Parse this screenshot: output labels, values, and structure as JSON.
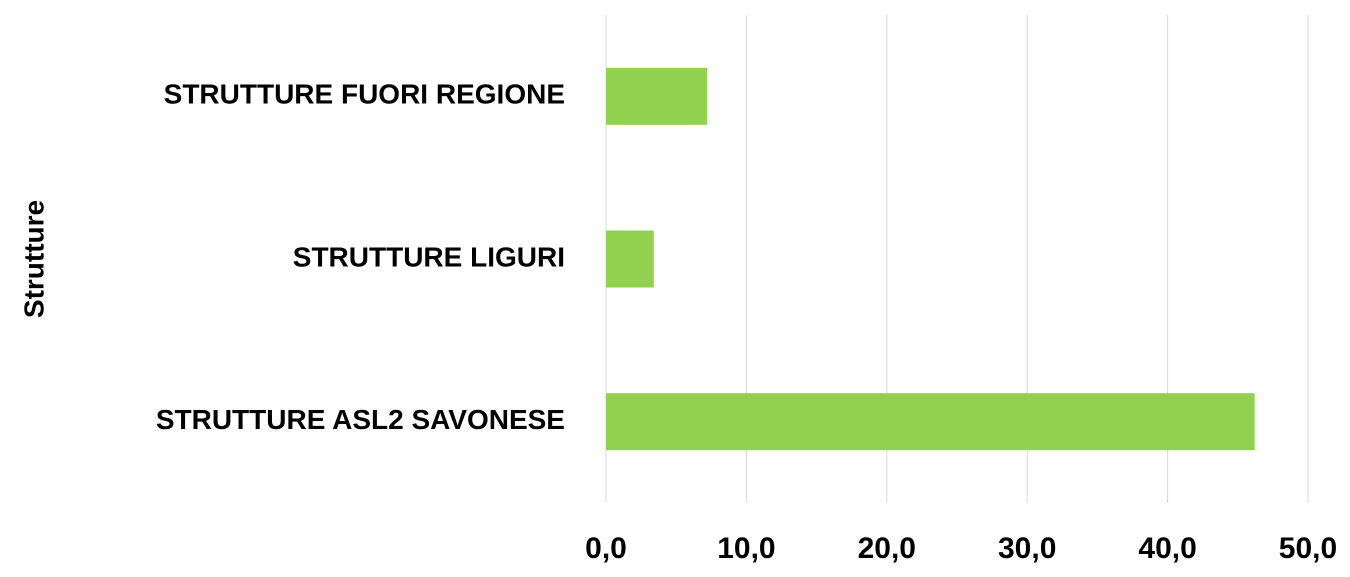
{
  "chart_data": {
    "type": "barh",
    "y_label": "Strutture",
    "categories": [
      "STRUTTURE FUORI REGIONE",
      "STRUTTURE LIGURI",
      "STRUTTURE ASL2 SAVONESE"
    ],
    "values": [
      7.2,
      3.4,
      46.2
    ],
    "color": "#92d050",
    "xlim": [
      0,
      50
    ],
    "xticks": [
      {
        "value": 0,
        "label": "0,0"
      },
      {
        "value": 10,
        "label": "10,0"
      },
      {
        "value": 20,
        "label": "20,0"
      },
      {
        "value": 30,
        "label": "30,0"
      },
      {
        "value": 40,
        "label": "40,0"
      },
      {
        "value": 50,
        "label": "50,0"
      }
    ],
    "grid": true
  }
}
